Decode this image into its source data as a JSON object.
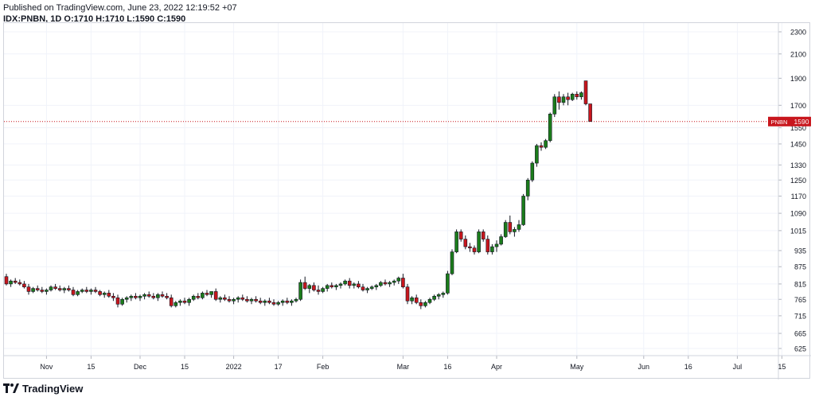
{
  "header": {
    "published": "Published on TradingView.com, June 23, 2022 12:19:52 +07",
    "symbol_line": "IDX:PNBN, 1D",
    "ohlc": "O:1710 H:1710 L:1590 C:1590"
  },
  "footer": {
    "brand": "TradingView"
  },
  "colors": {
    "up": "#1b7c1b",
    "down": "#c8161d",
    "wick": "#131722",
    "price_line": "#c8161d",
    "grid": "#f0f3fa"
  },
  "chart_data": {
    "type": "candlestick",
    "symbol": "PNBN",
    "last_price": 1590,
    "last_price_label": "1590",
    "price_tag_label": "PNBN",
    "y_ticks": [
      2300,
      2100,
      1900,
      1700,
      1550,
      1450,
      1330,
      1250,
      1170,
      1090,
      1015,
      935,
      875,
      815,
      765,
      715,
      665,
      625
    ],
    "x_ticks": [
      {
        "label": "Nov",
        "bar": 9
      },
      {
        "label": "15",
        "bar": 19
      },
      {
        "label": "Dec",
        "bar": 30
      },
      {
        "label": "15",
        "bar": 40
      },
      {
        "label": "2022",
        "bar": 51
      },
      {
        "label": "17",
        "bar": 61
      },
      {
        "label": "Feb",
        "bar": 71
      },
      {
        "label": "Mar",
        "bar": 89
      },
      {
        "label": "16",
        "bar": 99
      },
      {
        "label": "Apr",
        "bar": 110
      },
      {
        "label": "May",
        "bar": 128
      },
      {
        "label": "Jun",
        "bar": 143
      },
      {
        "label": "16",
        "bar": 153
      },
      {
        "label": "Jul",
        "bar": 164
      },
      {
        "label": "15",
        "bar": 174
      }
    ],
    "candles": [
      [
        840,
        850,
        810,
        815
      ],
      [
        815,
        830,
        805,
        825
      ],
      [
        825,
        835,
        815,
        820
      ],
      [
        820,
        830,
        810,
        815
      ],
      [
        815,
        825,
        800,
        805
      ],
      [
        805,
        815,
        780,
        790
      ],
      [
        790,
        805,
        785,
        800
      ],
      [
        800,
        810,
        790,
        795
      ],
      [
        795,
        805,
        785,
        790
      ],
      [
        790,
        800,
        780,
        795
      ],
      [
        795,
        810,
        790,
        805
      ],
      [
        805,
        815,
        795,
        800
      ],
      [
        800,
        810,
        790,
        795
      ],
      [
        795,
        805,
        785,
        800
      ],
      [
        800,
        810,
        790,
        795
      ],
      [
        795,
        805,
        775,
        780
      ],
      [
        780,
        795,
        775,
        790
      ],
      [
        790,
        800,
        785,
        795
      ],
      [
        795,
        805,
        785,
        790
      ],
      [
        790,
        800,
        780,
        795
      ],
      [
        795,
        805,
        785,
        790
      ],
      [
        790,
        795,
        775,
        780
      ],
      [
        780,
        790,
        770,
        785
      ],
      [
        785,
        795,
        770,
        775
      ],
      [
        775,
        785,
        760,
        770
      ],
      [
        770,
        780,
        740,
        750
      ],
      [
        750,
        770,
        745,
        765
      ],
      [
        765,
        775,
        755,
        770
      ],
      [
        770,
        780,
        760,
        775
      ],
      [
        775,
        785,
        765,
        770
      ],
      [
        770,
        780,
        760,
        775
      ],
      [
        775,
        785,
        765,
        780
      ],
      [
        780,
        790,
        770,
        775
      ],
      [
        775,
        785,
        765,
        770
      ],
      [
        770,
        785,
        760,
        780
      ],
      [
        780,
        790,
        770,
        775
      ],
      [
        775,
        785,
        765,
        770
      ],
      [
        770,
        780,
        740,
        745
      ],
      [
        745,
        760,
        740,
        755
      ],
      [
        755,
        765,
        745,
        760
      ],
      [
        760,
        770,
        750,
        755
      ],
      [
        755,
        770,
        745,
        765
      ],
      [
        765,
        780,
        760,
        775
      ],
      [
        775,
        785,
        765,
        770
      ],
      [
        770,
        790,
        765,
        785
      ],
      [
        785,
        795,
        775,
        780
      ],
      [
        780,
        790,
        770,
        790
      ],
      [
        790,
        800,
        760,
        765
      ],
      [
        765,
        775,
        755,
        770
      ],
      [
        770,
        780,
        760,
        765
      ],
      [
        765,
        775,
        755,
        760
      ],
      [
        760,
        770,
        750,
        765
      ],
      [
        765,
        775,
        755,
        770
      ],
      [
        770,
        780,
        760,
        765
      ],
      [
        765,
        775,
        755,
        760
      ],
      [
        760,
        770,
        750,
        765
      ],
      [
        765,
        775,
        755,
        760
      ],
      [
        760,
        770,
        750,
        755
      ],
      [
        755,
        765,
        745,
        760
      ],
      [
        760,
        770,
        750,
        755
      ],
      [
        755,
        765,
        745,
        750
      ],
      [
        750,
        760,
        745,
        755
      ],
      [
        755,
        765,
        745,
        760
      ],
      [
        760,
        770,
        750,
        755
      ],
      [
        755,
        765,
        745,
        760
      ],
      [
        760,
        770,
        755,
        765
      ],
      [
        765,
        830,
        760,
        820
      ],
      [
        820,
        840,
        795,
        800
      ],
      [
        800,
        815,
        785,
        810
      ],
      [
        810,
        820,
        790,
        795
      ],
      [
        795,
        810,
        780,
        790
      ],
      [
        790,
        805,
        785,
        800
      ],
      [
        800,
        815,
        790,
        810
      ],
      [
        810,
        820,
        800,
        805
      ],
      [
        805,
        815,
        795,
        810
      ],
      [
        810,
        820,
        800,
        815
      ],
      [
        815,
        830,
        810,
        825
      ],
      [
        825,
        835,
        800,
        810
      ],
      [
        810,
        820,
        800,
        815
      ],
      [
        815,
        825,
        800,
        805
      ],
      [
        805,
        815,
        790,
        795
      ],
      [
        795,
        805,
        785,
        800
      ],
      [
        800,
        810,
        795,
        805
      ],
      [
        805,
        815,
        795,
        810
      ],
      [
        810,
        825,
        805,
        820
      ],
      [
        820,
        830,
        810,
        815
      ],
      [
        815,
        825,
        805,
        820
      ],
      [
        820,
        830,
        810,
        825
      ],
      [
        825,
        840,
        815,
        835
      ],
      [
        835,
        850,
        800,
        805
      ],
      [
        805,
        815,
        750,
        760
      ],
      [
        760,
        775,
        750,
        770
      ],
      [
        770,
        780,
        750,
        755
      ],
      [
        755,
        765,
        735,
        745
      ],
      [
        745,
        760,
        740,
        755
      ],
      [
        755,
        770,
        750,
        765
      ],
      [
        765,
        780,
        760,
        775
      ],
      [
        775,
        785,
        765,
        780
      ],
      [
        780,
        790,
        770,
        785
      ],
      [
        785,
        860,
        780,
        850
      ],
      [
        850,
        940,
        845,
        930
      ],
      [
        930,
        1020,
        925,
        1010
      ],
      [
        1010,
        1020,
        970,
        980
      ],
      [
        980,
        995,
        940,
        950
      ],
      [
        950,
        965,
        930,
        945
      ],
      [
        945,
        955,
        920,
        930
      ],
      [
        930,
        1020,
        925,
        1010
      ],
      [
        1010,
        1020,
        970,
        980
      ],
      [
        980,
        995,
        920,
        930
      ],
      [
        930,
        960,
        920,
        950
      ],
      [
        950,
        975,
        930,
        960
      ],
      [
        960,
        1000,
        955,
        990
      ],
      [
        990,
        1060,
        985,
        1050
      ],
      [
        1050,
        1080,
        1000,
        1010
      ],
      [
        1010,
        1030,
        990,
        1020
      ],
      [
        1020,
        1060,
        1010,
        1040
      ],
      [
        1040,
        1180,
        1035,
        1170
      ],
      [
        1170,
        1260,
        1150,
        1250
      ],
      [
        1250,
        1350,
        1240,
        1340
      ],
      [
        1340,
        1450,
        1320,
        1440
      ],
      [
        1440,
        1460,
        1410,
        1430
      ],
      [
        1430,
        1480,
        1420,
        1470
      ],
      [
        1470,
        1650,
        1460,
        1640
      ],
      [
        1640,
        1780,
        1620,
        1760
      ],
      [
        1760,
        1800,
        1670,
        1720
      ],
      [
        1720,
        1780,
        1700,
        1760
      ],
      [
        1760,
        1790,
        1700,
        1740
      ],
      [
        1740,
        1790,
        1730,
        1780
      ],
      [
        1780,
        1800,
        1740,
        1760
      ],
      [
        1760,
        1800,
        1740,
        1790
      ],
      [
        1880,
        1880,
        1700,
        1710
      ],
      [
        1710,
        1710,
        1590,
        1590
      ]
    ]
  }
}
